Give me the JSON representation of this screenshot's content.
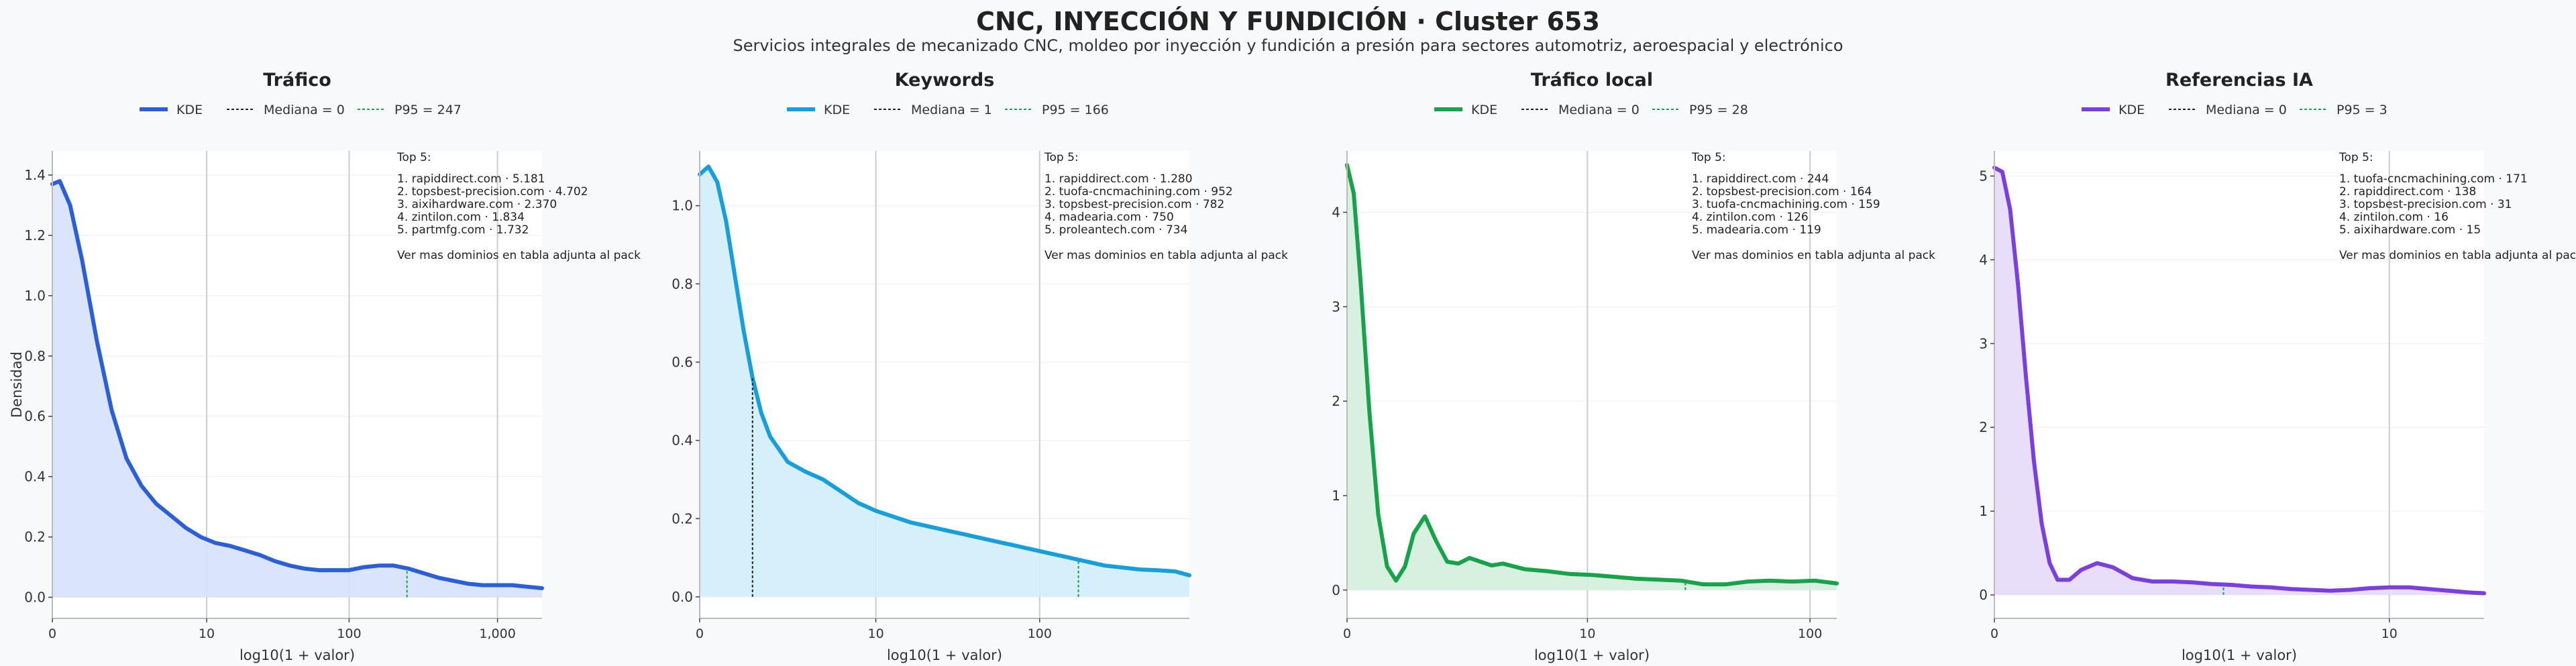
{
  "title": "CNC, INYECCIÓN Y FUNDICIÓN · Cluster 653",
  "subtitle": "Servicios integrales de mecanizado CNC, moldeo por inyección y fundición a presión para sectores automotriz, aeroespacial y electrónico",
  "chart_data": [
    {
      "type": "area",
      "title": "Tráfico",
      "xlabel": "log10(1 + valor)",
      "ylabel": "Densidad",
      "color": "#2b5fd9",
      "fill": "#d6e1f9",
      "xlim": [
        0,
        3.3
      ],
      "ylim": [
        -0.07,
        1.48
      ],
      "xticks": [
        {
          "v": 0,
          "label": "0"
        },
        {
          "v": 1.04,
          "label": "10"
        },
        {
          "v": 2.0,
          "label": "100"
        },
        {
          "v": 3.0,
          "label": "1,000"
        }
      ],
      "yticks": [
        {
          "v": 0,
          "label": "0.0"
        },
        {
          "v": 0.2,
          "label": "0.2"
        },
        {
          "v": 0.4,
          "label": "0.4"
        },
        {
          "v": 0.6,
          "label": "0.6"
        },
        {
          "v": 0.8,
          "label": "0.8"
        },
        {
          "v": 1.0,
          "label": "1.0"
        },
        {
          "v": 1.2,
          "label": "1.2"
        },
        {
          "v": 1.4,
          "label": "1.4"
        }
      ],
      "legend": {
        "kde": "KDE",
        "median": "Mediana = 0",
        "p95": "P95 = 247"
      },
      "median": 0,
      "p95": 2.39,
      "x": [
        0,
        0.05,
        0.12,
        0.2,
        0.3,
        0.4,
        0.5,
        0.6,
        0.7,
        0.8,
        0.9,
        1.0,
        1.1,
        1.2,
        1.3,
        1.4,
        1.5,
        1.6,
        1.7,
        1.8,
        1.9,
        2.0,
        2.1,
        2.2,
        2.3,
        2.4,
        2.5,
        2.6,
        2.7,
        2.8,
        2.9,
        3.0,
        3.1,
        3.2,
        3.3
      ],
      "y": [
        1.37,
        1.38,
        1.3,
        1.12,
        0.85,
        0.62,
        0.46,
        0.37,
        0.31,
        0.27,
        0.23,
        0.2,
        0.18,
        0.17,
        0.155,
        0.14,
        0.12,
        0.105,
        0.095,
        0.09,
        0.09,
        0.09,
        0.1,
        0.105,
        0.105,
        0.095,
        0.08,
        0.065,
        0.055,
        0.045,
        0.04,
        0.04,
        0.04,
        0.035,
        0.03
      ],
      "top5": {
        "header": "Top 5:",
        "items": [
          "1. rapiddirect.com · 5.181",
          "2. topsbest-precision.com · 4.702",
          "3. aixihardware.com · 2.370",
          "4. zintilon.com · 1.834",
          "5. partmfg.com · 1.732"
        ],
        "footer": "Ver mas dominios en tabla adjunta al pack"
      }
    },
    {
      "type": "area",
      "title": "Keywords",
      "xlabel": "log10(1 + valor)",
      "ylabel": "",
      "color": "#169fdb",
      "fill": "#d2eefb",
      "xlim": [
        0,
        2.78
      ],
      "ylim": [
        -0.055,
        1.14
      ],
      "xticks": [
        {
          "v": 0,
          "label": "0"
        },
        {
          "v": 1.0,
          "label": "10"
        },
        {
          "v": 1.93,
          "label": "100"
        }
      ],
      "yticks": [
        {
          "v": 0,
          "label": "0.0"
        },
        {
          "v": 0.2,
          "label": "0.2"
        },
        {
          "v": 0.4,
          "label": "0.4"
        },
        {
          "v": 0.6,
          "label": "0.6"
        },
        {
          "v": 0.8,
          "label": "0.8"
        },
        {
          "v": 1.0,
          "label": "1.0"
        }
      ],
      "legend": {
        "kde": "KDE",
        "median": "Mediana = 1",
        "p95": "P95 = 166"
      },
      "median": 0.3,
      "p95": 2.15,
      "x": [
        0,
        0.05,
        0.1,
        0.15,
        0.2,
        0.25,
        0.3,
        0.35,
        0.4,
        0.5,
        0.6,
        0.7,
        0.8,
        0.9,
        1.0,
        1.1,
        1.2,
        1.3,
        1.4,
        1.5,
        1.6,
        1.7,
        1.8,
        1.9,
        2.0,
        2.1,
        2.2,
        2.3,
        2.4,
        2.5,
        2.6,
        2.7,
        2.78
      ],
      "y": [
        1.08,
        1.1,
        1.06,
        0.96,
        0.82,
        0.68,
        0.56,
        0.47,
        0.41,
        0.345,
        0.32,
        0.3,
        0.27,
        0.24,
        0.22,
        0.205,
        0.19,
        0.18,
        0.17,
        0.16,
        0.15,
        0.14,
        0.13,
        0.12,
        0.11,
        0.1,
        0.09,
        0.08,
        0.075,
        0.07,
        0.068,
        0.065,
        0.055
      ],
      "top5": {
        "header": "Top 5:",
        "items": [
          "1. rapiddirect.com · 1.280",
          "2. tuofa-cncmachining.com · 952",
          "3. topsbest-precision.com · 782",
          "4. madearia.com · 750",
          "5. proleantech.com · 734"
        ],
        "footer": "Ver mas dominios en tabla adjunta al pack"
      }
    },
    {
      "type": "area",
      "title": "Tráfico local",
      "xlabel": "log10(1 + valor)",
      "ylabel": "",
      "color": "#16a34a",
      "fill": "#d3eedb",
      "xlim": [
        0,
        2.2
      ],
      "ylim": [
        -0.3,
        4.65
      ],
      "xticks": [
        {
          "v": 0,
          "label": "0"
        },
        {
          "v": 1.08,
          "label": "10"
        },
        {
          "v": 2.08,
          "label": "100"
        }
      ],
      "yticks": [
        {
          "v": 0,
          "label": "0"
        },
        {
          "v": 1,
          "label": "1"
        },
        {
          "v": 2,
          "label": "2"
        },
        {
          "v": 3,
          "label": "3"
        },
        {
          "v": 4,
          "label": "4"
        }
      ],
      "legend": {
        "kde": "KDE",
        "median": "Mediana = 0",
        "p95": "P95 = 28"
      },
      "median": 0,
      "p95": 1.52,
      "x": [
        0,
        0.03,
        0.06,
        0.1,
        0.14,
        0.18,
        0.22,
        0.26,
        0.3,
        0.35,
        0.4,
        0.45,
        0.5,
        0.55,
        0.6,
        0.65,
        0.7,
        0.8,
        0.9,
        1.0,
        1.1,
        1.2,
        1.3,
        1.4,
        1.5,
        1.6,
        1.7,
        1.8,
        1.9,
        2.0,
        2.1,
        2.2
      ],
      "y": [
        4.5,
        4.2,
        3.3,
        1.9,
        0.8,
        0.25,
        0.1,
        0.25,
        0.6,
        0.78,
        0.52,
        0.3,
        0.28,
        0.34,
        0.3,
        0.26,
        0.28,
        0.22,
        0.2,
        0.17,
        0.16,
        0.14,
        0.12,
        0.11,
        0.1,
        0.06,
        0.06,
        0.09,
        0.1,
        0.09,
        0.1,
        0.07
      ],
      "top5": {
        "header": "Top 5:",
        "items": [
          "1. rapiddirect.com · 244",
          "2. topsbest-precision.com · 164",
          "3. tuofa-cncmachining.com · 159",
          "4. zintilon.com · 126",
          "5. madearia.com · 119"
        ],
        "footer": "Ver mas dominios en tabla adjunta al pack"
      }
    },
    {
      "type": "area",
      "title": "Referencias IA",
      "xlabel": "log10(1 + valor)",
      "ylabel": "",
      "color": "#7b3fe0",
      "fill": "#e6daf8",
      "xlim": [
        0,
        1.24
      ],
      "ylim": [
        -0.28,
        5.3
      ],
      "xticks": [
        {
          "v": 0,
          "label": "0"
        },
        {
          "v": 1.0,
          "label": "10"
        }
      ],
      "yticks": [
        {
          "v": 0,
          "label": "0"
        },
        {
          "v": 1,
          "label": "1"
        },
        {
          "v": 2,
          "label": "2"
        },
        {
          "v": 3,
          "label": "3"
        },
        {
          "v": 4,
          "label": "4"
        },
        {
          "v": 5,
          "label": "5"
        }
      ],
      "legend": {
        "kde": "KDE",
        "median": "Mediana = 0",
        "p95": "P95 = 3"
      },
      "median": 0,
      "p95": 0.58,
      "x": [
        0,
        0.02,
        0.04,
        0.06,
        0.08,
        0.1,
        0.12,
        0.14,
        0.16,
        0.19,
        0.22,
        0.26,
        0.3,
        0.35,
        0.4,
        0.45,
        0.5,
        0.55,
        0.6,
        0.65,
        0.7,
        0.75,
        0.8,
        0.85,
        0.9,
        0.95,
        1.0,
        1.05,
        1.1,
        1.15,
        1.2,
        1.24
      ],
      "y": [
        5.1,
        5.05,
        4.6,
        3.7,
        2.6,
        1.6,
        0.85,
        0.38,
        0.18,
        0.18,
        0.3,
        0.38,
        0.33,
        0.2,
        0.16,
        0.16,
        0.15,
        0.13,
        0.12,
        0.1,
        0.09,
        0.07,
        0.06,
        0.05,
        0.06,
        0.08,
        0.09,
        0.09,
        0.07,
        0.05,
        0.03,
        0.02
      ],
      "top5": {
        "header": "Top 5:",
        "items": [
          "1. tuofa-cncmachining.com · 171",
          "2. rapiddirect.com · 138",
          "3. topsbest-precision.com · 31",
          "4. zintilon.com · 16",
          "5. aixihardware.com · 15"
        ],
        "footer": "Ver mas dominios en tabla adjunta al pack"
      }
    }
  ]
}
